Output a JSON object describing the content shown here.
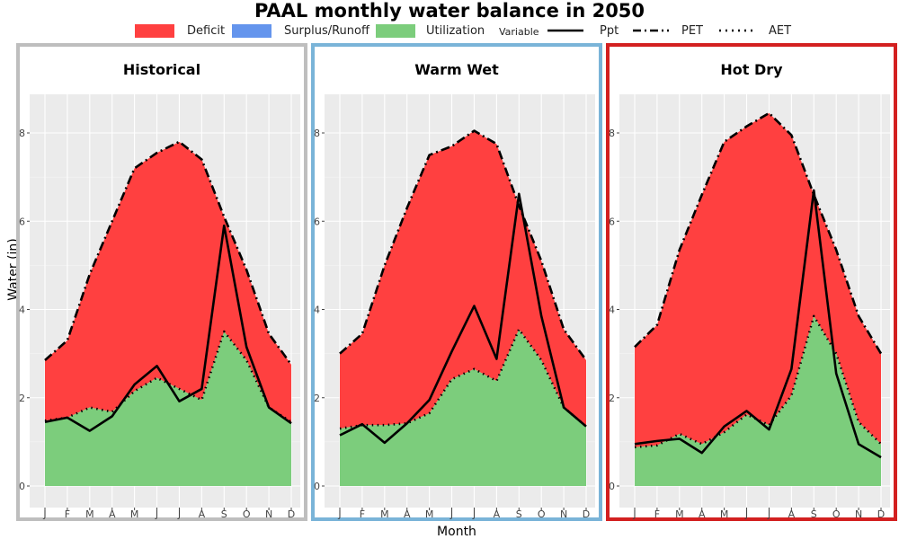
{
  "chart_data": {
    "type": "area",
    "title": "PAAL monthly water balance in 2050",
    "xlabel": "Month",
    "ylabel": "Water (in)",
    "ylim": [
      0,
      8
    ],
    "yticks": [
      0,
      2,
      4,
      6,
      8
    ],
    "categories": [
      "J",
      "F",
      "M",
      "A",
      "M",
      "J",
      "J",
      "A",
      "S",
      "O",
      "N",
      "D"
    ],
    "grid": true,
    "legend": {
      "placement": "top",
      "fill_items": [
        {
          "label": "Deficit",
          "color": "#ff4040"
        },
        {
          "label": "Surplus/Runoff",
          "color": "#6495ed"
        },
        {
          "label": "Utilization",
          "color": "#7ccd7c"
        }
      ],
      "variable_title": "Variable",
      "line_items": [
        {
          "label": "Ppt",
          "style": "solid"
        },
        {
          "label": "PET",
          "style": "dashdot"
        },
        {
          "label": "AET",
          "style": "dotted"
        }
      ]
    },
    "panels": [
      {
        "name": "Historical",
        "border_color": "#bebebe",
        "PET": [
          2.85,
          3.3,
          4.8,
          6.0,
          7.2,
          7.55,
          7.8,
          7.4,
          6.1,
          4.9,
          3.45,
          2.75
        ],
        "AET": [
          1.48,
          1.55,
          1.78,
          1.68,
          2.15,
          2.45,
          2.2,
          1.95,
          3.5,
          2.85,
          1.78,
          1.45
        ],
        "Ppt": [
          1.45,
          1.55,
          1.25,
          1.58,
          2.3,
          2.72,
          1.92,
          2.2,
          5.9,
          3.15,
          1.78,
          1.42
        ]
      },
      {
        "name": "Warm Wet",
        "border_color": "#7ab4d8",
        "PET": [
          3.0,
          3.45,
          5.0,
          6.3,
          7.5,
          7.7,
          8.05,
          7.75,
          6.35,
          5.1,
          3.55,
          2.85
        ],
        "AET": [
          1.3,
          1.38,
          1.38,
          1.42,
          1.65,
          2.42,
          2.65,
          2.38,
          3.55,
          2.85,
          1.78,
          1.35
        ],
        "Ppt": [
          1.15,
          1.4,
          0.98,
          1.42,
          1.95,
          3.05,
          4.08,
          2.88,
          6.62,
          3.85,
          1.78,
          1.35
        ]
      },
      {
        "name": "Hot Dry",
        "border_color": "#d32020",
        "PET": [
          3.15,
          3.65,
          5.35,
          6.6,
          7.8,
          8.15,
          8.45,
          7.95,
          6.6,
          5.35,
          3.85,
          3.0
        ],
        "AET": [
          0.88,
          0.92,
          1.18,
          0.95,
          1.22,
          1.62,
          1.38,
          2.05,
          3.85,
          3.0,
          1.45,
          0.95
        ],
        "Ppt": [
          0.95,
          1.02,
          1.07,
          0.75,
          1.35,
          1.7,
          1.28,
          2.65,
          6.7,
          2.55,
          0.95,
          0.65
        ]
      }
    ]
  }
}
